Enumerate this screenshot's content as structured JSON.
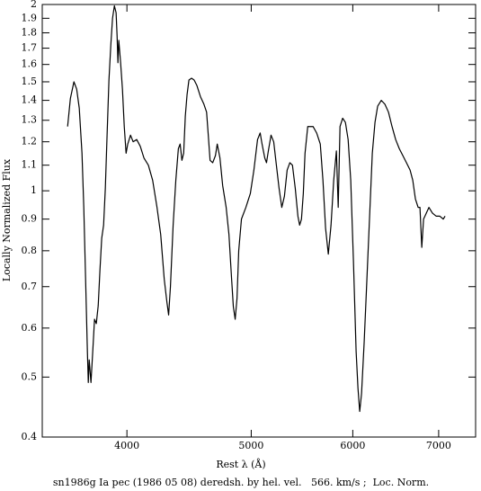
{
  "chart_data": {
    "type": "line",
    "x_label": "Rest λ (Å)",
    "y_label": "Locally Normalized Flux",
    "caption": "sn1986g Ia pec (1986 05 08) deredsh. by hel. vel.   566. km/s ;  Loc. Norm.",
    "x_scale": "log",
    "y_scale": "log",
    "color": "#000000",
    "xlim": [
      3436,
      7480
    ],
    "ylim": [
      0.4,
      2
    ],
    "xticks": [
      4000,
      5000,
      6000,
      7000
    ],
    "yticks": [
      0.4,
      0.5,
      0.6,
      0.7,
      0.8,
      0.9,
      1,
      1.1,
      1.2,
      1.3,
      1.4,
      1.5,
      1.6,
      1.7,
      1.8,
      1.9,
      2
    ],
    "x": [
      3596,
      3614,
      3637,
      3655,
      3672,
      3690,
      3702,
      3714,
      3726,
      3732,
      3738,
      3750,
      3762,
      3774,
      3786,
      3799,
      3811,
      3823,
      3836,
      3848,
      3860,
      3873,
      3886,
      3898,
      3911,
      3923,
      3930,
      3936,
      3942,
      3955,
      3968,
      3981,
      3994,
      4006,
      4026,
      4045,
      4071,
      4097,
      4124,
      4157,
      4189,
      4222,
      4250,
      4277,
      4298,
      4311,
      4325,
      4346,
      4367,
      4387,
      4401,
      4415,
      4429,
      4442,
      4456,
      4471,
      4492,
      4513,
      4535,
      4564,
      4593,
      4615,
      4629,
      4644,
      4666,
      4689,
      4704,
      4727,
      4750,
      4780,
      4804,
      4827,
      4842,
      4858,
      4874,
      4889,
      4913,
      4952,
      4992,
      5024,
      5057,
      5081,
      5098,
      5123,
      5139,
      5156,
      5181,
      5206,
      5231,
      5256,
      5282,
      5307,
      5333,
      5359,
      5384,
      5411,
      5437,
      5454,
      5472,
      5490,
      5507,
      5534,
      5561,
      5587,
      5623,
      5660,
      5687,
      5714,
      5742,
      5770,
      5798,
      5826,
      5845,
      5864,
      5892,
      5921,
      5950,
      5978,
      6007,
      6036,
      6056,
      6075,
      6095,
      6124,
      6154,
      6184,
      6214,
      6244,
      6274,
      6315,
      6356,
      6397,
      6438,
      6480,
      6522,
      6564,
      6607,
      6650,
      6682,
      6714,
      6747,
      6769,
      6791,
      6813,
      6846,
      6879,
      6923,
      6968,
      7013,
      7058,
      7081
    ],
    "values": [
      1.27,
      1.41,
      1.5,
      1.46,
      1.36,
      1.15,
      0.94,
      0.72,
      0.55,
      0.49,
      0.533,
      0.49,
      0.55,
      0.62,
      0.61,
      0.652,
      0.745,
      0.838,
      0.88,
      1.01,
      1.23,
      1.51,
      1.72,
      1.9,
      1.99,
      1.94,
      1.78,
      1.61,
      1.75,
      1.61,
      1.46,
      1.27,
      1.15,
      1.19,
      1.23,
      1.2,
      1.21,
      1.18,
      1.13,
      1.1,
      1.04,
      0.94,
      0.85,
      0.72,
      0.66,
      0.63,
      0.7,
      0.88,
      1.04,
      1.17,
      1.19,
      1.12,
      1.15,
      1.32,
      1.43,
      1.51,
      1.52,
      1.51,
      1.48,
      1.42,
      1.38,
      1.34,
      1.23,
      1.12,
      1.11,
      1.14,
      1.19,
      1.13,
      1.02,
      0.94,
      0.85,
      0.72,
      0.65,
      0.62,
      0.67,
      0.8,
      0.9,
      0.94,
      0.99,
      1.08,
      1.21,
      1.24,
      1.19,
      1.13,
      1.11,
      1.16,
      1.23,
      1.2,
      1.1,
      1.01,
      0.94,
      0.98,
      1.08,
      1.11,
      1.1,
      1.01,
      0.91,
      0.88,
      0.9,
      0.99,
      1.15,
      1.27,
      1.27,
      1.27,
      1.24,
      1.19,
      1.04,
      0.87,
      0.79,
      0.88,
      1.04,
      1.16,
      0.94,
      1.27,
      1.31,
      1.29,
      1.21,
      1.04,
      0.77,
      0.55,
      0.48,
      0.44,
      0.47,
      0.57,
      0.72,
      0.91,
      1.15,
      1.29,
      1.37,
      1.4,
      1.38,
      1.34,
      1.27,
      1.21,
      1.17,
      1.14,
      1.11,
      1.08,
      1.04,
      0.97,
      0.94,
      0.94,
      0.81,
      0.9,
      0.92,
      0.94,
      0.92,
      0.91,
      0.91,
      0.9,
      0.91
    ]
  }
}
